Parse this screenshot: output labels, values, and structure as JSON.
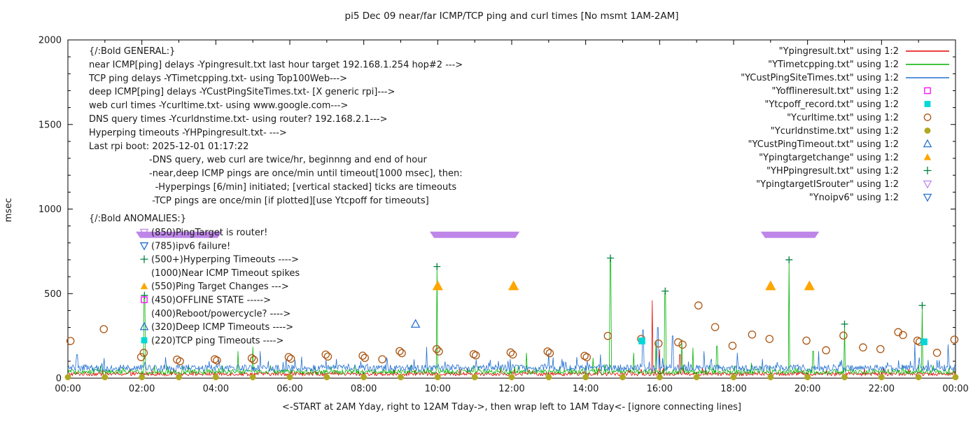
{
  "title": "pi5 Dec 09  near/far ICMP/TCP ping and curl times [No msmt 1AM-2AM]",
  "chart_data": {
    "type": "line+scatter",
    "title": "pi5 Dec 09  near/far ICMP/TCP ping and curl times [No msmt 1AM-2AM]",
    "xlabel": "<-START at 2AM Yday, right to 12AM Tday->, then wrap left to 1AM Tday<- [ignore connecting lines]",
    "ylabel": "msec",
    "xlim_hours": [
      0,
      24
    ],
    "ylim": [
      0,
      2000
    ],
    "yticks": [
      0,
      500,
      1000,
      1500,
      2000
    ],
    "xtick_labels": [
      "00:00",
      "02:00",
      "04:00",
      "06:00",
      "08:00",
      "10:00",
      "12:00",
      "14:00",
      "16:00",
      "18:00",
      "20:00",
      "22:00",
      "00:00"
    ],
    "grid": false,
    "legend_position": "top-right-inside",
    "line_series": [
      {
        "name": "Ypingresult.txt",
        "color": "#e80000",
        "baseline": 25,
        "noise": 11,
        "spikes": [
          [
            15.8,
            460
          ],
          [
            16.0,
            170
          ],
          [
            16.55,
            140
          ]
        ]
      },
      {
        "name": "YTimetcpping.txt",
        "color": "#00b400",
        "baseline": 37,
        "noise": 15,
        "spikes": [
          [
            2.07,
            480
          ],
          [
            4.6,
            160
          ],
          [
            5.0,
            185
          ],
          [
            9.98,
            655
          ],
          [
            12.4,
            150
          ],
          [
            14.2,
            120
          ],
          [
            14.67,
            700
          ],
          [
            15.3,
            150
          ],
          [
            15.9,
            220
          ],
          [
            16.15,
            505
          ],
          [
            16.6,
            230
          ],
          [
            16.9,
            180
          ],
          [
            17.55,
            190
          ],
          [
            19.5,
            690
          ],
          [
            20.15,
            160
          ],
          [
            21.0,
            310
          ],
          [
            23.1,
            420
          ]
        ]
      },
      {
        "name": "YCustPingSiteTimes.txt",
        "color": "#2470d2",
        "baseline": 60,
        "noise": 20,
        "spikes": [
          [
            0.25,
            140
          ],
          [
            5.2,
            160
          ],
          [
            9.7,
            185
          ],
          [
            13.0,
            150
          ],
          [
            14.4,
            140
          ],
          [
            15.55,
            285
          ],
          [
            15.95,
            300
          ],
          [
            16.35,
            250
          ],
          [
            17.2,
            160
          ],
          [
            18.1,
            150
          ],
          [
            20.3,
            160
          ],
          [
            22.9,
            205
          ],
          [
            23.8,
            200
          ]
        ]
      }
    ],
    "scatter_series": [
      {
        "name": "Ycurltime.txt",
        "marker": "circle-open",
        "color": "#ab5613",
        "size": 6,
        "points": [
          [
            0.07,
            220
          ],
          [
            0.97,
            290
          ],
          [
            1.98,
            125
          ],
          [
            2.05,
            150
          ],
          [
            2.95,
            110
          ],
          [
            3.03,
            100
          ],
          [
            3.97,
            112
          ],
          [
            4.03,
            105
          ],
          [
            4.97,
            118
          ],
          [
            5.03,
            108
          ],
          [
            5.97,
            125
          ],
          [
            6.03,
            115
          ],
          [
            6.97,
            140
          ],
          [
            7.03,
            128
          ],
          [
            7.97,
            133
          ],
          [
            8.03,
            120
          ],
          [
            8.5,
            112
          ],
          [
            8.97,
            160
          ],
          [
            9.03,
            148
          ],
          [
            9.97,
            172
          ],
          [
            10.03,
            158
          ],
          [
            10.97,
            142
          ],
          [
            11.03,
            135
          ],
          [
            11.97,
            152
          ],
          [
            12.03,
            140
          ],
          [
            12.97,
            158
          ],
          [
            13.03,
            148
          ],
          [
            13.97,
            132
          ],
          [
            14.03,
            124
          ],
          [
            14.6,
            250
          ],
          [
            15.5,
            232
          ],
          [
            15.97,
            205
          ],
          [
            16.5,
            212
          ],
          [
            16.62,
            198
          ],
          [
            17.05,
            430
          ],
          [
            17.5,
            302
          ],
          [
            17.97,
            192
          ],
          [
            18.5,
            258
          ],
          [
            18.97,
            232
          ],
          [
            19.97,
            222
          ],
          [
            20.5,
            165
          ],
          [
            20.97,
            252
          ],
          [
            21.5,
            182
          ],
          [
            21.97,
            172
          ],
          [
            22.45,
            272
          ],
          [
            22.58,
            255
          ],
          [
            22.97,
            222
          ],
          [
            23.03,
            215
          ],
          [
            23.5,
            150
          ],
          [
            23.97,
            228
          ]
        ]
      },
      {
        "name": "Ycurldnstime.txt",
        "marker": "circle-filled",
        "color": "#b0a820",
        "size": 5.5,
        "points": [
          [
            0,
            6
          ],
          [
            1,
            6
          ],
          [
            2,
            6
          ],
          [
            3,
            6
          ],
          [
            4,
            6
          ],
          [
            5,
            6
          ],
          [
            6,
            6
          ],
          [
            7,
            6
          ],
          [
            8,
            6
          ],
          [
            9,
            6
          ],
          [
            10,
            6
          ],
          [
            11,
            6
          ],
          [
            12,
            6
          ],
          [
            13,
            6
          ],
          [
            14,
            6
          ],
          [
            15,
            6
          ],
          [
            16,
            6
          ],
          [
            17,
            6
          ],
          [
            18,
            6
          ],
          [
            19,
            6
          ],
          [
            20,
            6
          ],
          [
            21,
            6
          ],
          [
            22,
            6
          ],
          [
            23,
            6
          ],
          [
            24,
            6
          ]
        ]
      },
      {
        "name": "Yofflineresult.txt",
        "marker": "square-open",
        "color": "#ff00ff",
        "size": 6,
        "points": []
      },
      {
        "name": "Ytcpoff_record.txt",
        "marker": "square-filled",
        "color": "#00d8d8",
        "size": 6,
        "points": [
          [
            15.52,
            220
          ],
          [
            23.15,
            215
          ]
        ]
      },
      {
        "name": "YCustPingTimeout.txt",
        "marker": "triangle-up-open",
        "color": "#2470d2",
        "size": 6,
        "points": [
          [
            9.4,
            320
          ]
        ]
      },
      {
        "name": "Ypingtargetchange",
        "marker": "triangle-up-filled",
        "color": "#ffa500",
        "size": 8,
        "points": [
          [
            10.0,
            545
          ],
          [
            12.05,
            545
          ],
          [
            19.0,
            545
          ],
          [
            20.05,
            545
          ]
        ]
      },
      {
        "name": "YHPpingresult.txt",
        "marker": "plus",
        "color": "#008040",
        "size": 5,
        "points": [
          [
            2.07,
            490
          ],
          [
            9.98,
            660
          ],
          [
            14.67,
            710
          ],
          [
            16.15,
            515
          ],
          [
            19.5,
            700
          ],
          [
            21.0,
            320
          ],
          [
            23.1,
            430
          ]
        ]
      },
      {
        "name": "Ynoipv6",
        "marker": "triangle-down-open",
        "color": "#2470d2",
        "size": 6,
        "points": []
      }
    ],
    "band_series": {
      "name": "YpingtargetISrouter",
      "marker": "triangle-down-open",
      "color": "#bd86e8",
      "value": 850,
      "ranges_hours": [
        [
          1.95,
          4.05
        ],
        [
          9.9,
          12.1
        ],
        [
          18.85,
          20.2
        ]
      ]
    }
  },
  "legend": {
    "items": [
      {
        "label": "\"Ypingresult.txt\" using 1:2",
        "swatch": "line",
        "color": "#e80000"
      },
      {
        "label": "\"YTimetcpping.txt\" using 1:2",
        "swatch": "line",
        "color": "#00b400"
      },
      {
        "label": "\"YCustPingSiteTimes.txt\" using 1:2",
        "swatch": "line",
        "color": "#2470d2"
      },
      {
        "label": "\"Yofflineresult.txt\" using 1:2",
        "swatch": "square-open",
        "color": "#ff00ff"
      },
      {
        "label": "\"Ytcpoff_record.txt\" using 1:2",
        "swatch": "square-filled",
        "color": "#00d8d8"
      },
      {
        "label": "\"Ycurltime.txt\" using 1:2",
        "swatch": "circle-open",
        "color": "#ab5613"
      },
      {
        "label": "\"Ycurldnstime.txt\" using 1:2",
        "swatch": "circle-filled",
        "color": "#b0a820"
      },
      {
        "label": "\"YCustPingTimeout.txt\" using 1:2",
        "swatch": "triangle-up-open",
        "color": "#2470d2"
      },
      {
        "label": "\"Ypingtargetchange\" using 1:2",
        "swatch": "triangle-up-filled",
        "color": "#ffa500"
      },
      {
        "label": "\"YHPpingresult.txt\" using 1:2",
        "swatch": "plus",
        "color": "#008040"
      },
      {
        "label": "\"YpingtargetISrouter\" using 1:2",
        "swatch": "triangle-down-open",
        "color": "#bd86e8"
      },
      {
        "label": "\"Ynoipv6\" using 1:2",
        "swatch": "triangle-down-open",
        "color": "#2470d2"
      }
    ]
  },
  "notes": {
    "general": {
      "header": "{/:Bold GENERAL:}",
      "lines": [
        {
          "indent": 0,
          "text": "near ICMP[ping] delays -Ypingresult.txt last hour target 192.168.1.254 hop#2 --->"
        },
        {
          "indent": 0,
          "text": "TCP ping delays -YTimetcpping.txt- using Top100Web--->"
        },
        {
          "indent": 0,
          "text": "deep ICMP[ping] delays -YCustPingSiteTimes.txt- [X generic rpi]--->"
        },
        {
          "indent": 0,
          "text": "web curl times -Ycurltime.txt- using www.google.com--->"
        },
        {
          "indent": 0,
          "text": "DNS query times -Ycurldnstime.txt- using router? 192.168.2.1--->"
        },
        {
          "indent": 0,
          "text": "Hyperping timeouts -YHPpingresult.txt- --->"
        },
        {
          "indent": 0,
          "text": "Last rpi boot: 2025-12-01 01:17:22"
        },
        {
          "indent": 1,
          "text": "-DNS query, web curl are twice/hr, beginnng and end of hour"
        },
        {
          "indent": 1,
          "text": "-near,deep ICMP pings are once/min until timeout[1000 msec], then:"
        },
        {
          "indent": 1.1,
          "text": "-Hyperpings [6/min] initiated; [vertical stacked] ticks are timeouts"
        },
        {
          "indent": 1.05,
          "text": "-TCP pings are once/min [if plotted][use Ytcpoff for timeouts]"
        }
      ]
    },
    "anomalies": {
      "header": "{/:Bold ANOMALIES:}",
      "items": [
        {
          "marker": "triangle-down-open",
          "color": "#bd86e8",
          "text": "(850)PingTarget is router!"
        },
        {
          "marker": "triangle-down-open",
          "color": "#2470d2",
          "text": "(785)ipv6 failure!"
        },
        {
          "marker": "plus",
          "color": "#008040",
          "text": "(500+)Hyperping Timeouts ---->"
        },
        {
          "marker": null,
          "color": null,
          "text": "(1000)Near ICMP Timeout spikes"
        },
        {
          "marker": "triangle-up-filled",
          "color": "#ffa500",
          "text": "(550)Ping Target Changes --->"
        },
        {
          "marker": "square-open",
          "color": "#ff00ff",
          "text": "(450)OFFLINE STATE ----->"
        },
        {
          "marker": null,
          "color": null,
          "text": "(400)Reboot/powercycle? ---->"
        },
        {
          "marker": "triangle-up-open",
          "color": "#2470d2",
          "text": "(320)Deep ICMP Timeouts ---->"
        },
        {
          "marker": "square-filled",
          "color": "#00d8d8",
          "text": "(220)TCP ping Timeouts ---->"
        }
      ]
    }
  }
}
